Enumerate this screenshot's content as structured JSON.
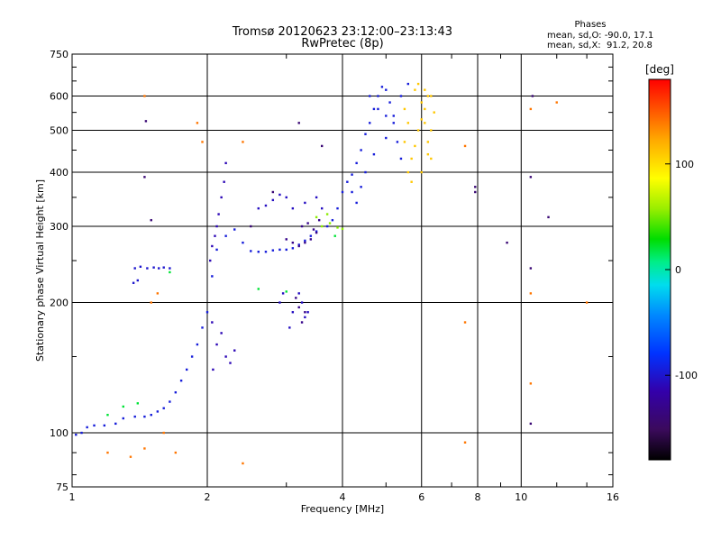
{
  "chart_data": {
    "type": "scatter",
    "title": "Tromsø 20120623 23:12:00–23:13:43",
    "subtitle": "RwPretec (8p)",
    "xlabel": "Frequency [MHz]",
    "ylabel": "Stationary phase Virtual Height [km]",
    "x_scale": "log",
    "y_scale": "log",
    "xlim": [
      1,
      16
    ],
    "ylim": [
      75,
      750
    ],
    "x_ticks": [
      1,
      2,
      4,
      6,
      8,
      10,
      16
    ],
    "x_tick_labels": [
      "1",
      "2",
      "4",
      "6",
      "8",
      "10",
      "16"
    ],
    "y_ticks": [
      75,
      100,
      200,
      300,
      400,
      500,
      600,
      750
    ],
    "y_tick_labels": [
      "75",
      "100",
      "200",
      "300",
      "400",
      "500",
      "600",
      "750"
    ],
    "grid": true,
    "phase_stats": {
      "heading": "Phases",
      "line_o": "mean, sd,O: -90.0, 17.1",
      "line_x": "mean, sd,X:  91.2, 20.8"
    },
    "colorbar": {
      "label": "[deg]",
      "range": [
        -180,
        180
      ],
      "ticks": [
        100,
        0,
        -100
      ],
      "tick_labels": [
        "100",
        "0",
        "-100"
      ]
    },
    "traces": [
      {
        "name": "",
        "phase": -95,
        "points": [
          [
            1.02,
            99
          ],
          [
            1.05,
            100
          ],
          [
            1.08,
            103
          ],
          [
            1.12,
            104
          ],
          [
            1.18,
            104
          ],
          [
            1.25,
            105
          ],
          [
            1.3,
            108
          ],
          [
            1.38,
            109
          ],
          [
            1.45,
            109
          ],
          [
            1.5,
            110
          ],
          [
            1.55,
            112
          ],
          [
            1.6,
            114
          ],
          [
            1.65,
            118
          ],
          [
            1.7,
            124
          ],
          [
            1.75,
            132
          ],
          [
            1.8,
            140
          ],
          [
            1.85,
            150
          ],
          [
            1.9,
            160
          ],
          [
            1.95,
            175
          ],
          [
            2.0,
            190
          ],
          [
            2.05,
            230
          ],
          [
            2.1,
            265
          ],
          [
            2.2,
            285
          ],
          [
            2.3,
            295
          ],
          [
            2.4,
            275
          ],
          [
            2.5,
            263
          ],
          [
            2.6,
            262
          ],
          [
            2.7,
            262
          ],
          [
            2.8,
            264
          ],
          [
            2.9,
            265
          ],
          [
            3.0,
            265
          ],
          [
            3.1,
            267
          ],
          [
            3.2,
            272
          ],
          [
            3.3,
            278
          ],
          [
            3.4,
            285
          ],
          [
            3.5,
            292
          ],
          [
            3.7,
            300
          ],
          [
            3.8,
            310
          ],
          [
            3.9,
            330
          ],
          [
            4.0,
            360
          ],
          [
            4.1,
            380
          ],
          [
            4.2,
            395
          ]
        ]
      },
      {
        "name": "",
        "phase": -100,
        "points": [
          [
            1.38,
            240
          ],
          [
            1.42,
            242
          ],
          [
            1.47,
            240
          ],
          [
            1.52,
            241
          ],
          [
            1.56,
            240
          ],
          [
            1.6,
            241
          ],
          [
            1.65,
            240
          ],
          [
            1.37,
            222
          ],
          [
            1.4,
            225
          ]
        ]
      },
      {
        "name": "",
        "phase": -110,
        "points": [
          [
            2.05,
            270
          ],
          [
            2.08,
            285
          ],
          [
            2.1,
            300
          ],
          [
            2.12,
            320
          ],
          [
            2.15,
            350
          ],
          [
            2.18,
            380
          ],
          [
            2.2,
            420
          ],
          [
            2.03,
            250
          ],
          [
            2.05,
            180
          ],
          [
            2.1,
            160
          ],
          [
            2.15,
            170
          ],
          [
            2.2,
            150
          ],
          [
            2.25,
            145
          ],
          [
            2.3,
            155
          ],
          [
            2.06,
            140
          ]
        ]
      },
      {
        "name": "",
        "phase": -105,
        "points": [
          [
            2.6,
            330
          ],
          [
            2.7,
            335
          ],
          [
            2.8,
            345
          ],
          [
            2.9,
            355
          ],
          [
            3.0,
            350
          ],
          [
            3.1,
            330
          ],
          [
            3.3,
            340
          ],
          [
            3.5,
            350
          ],
          [
            3.6,
            330
          ],
          [
            3.2,
            210
          ],
          [
            3.25,
            200
          ],
          [
            3.3,
            185
          ],
          [
            3.35,
            190
          ],
          [
            3.1,
            190
          ],
          [
            3.05,
            175
          ],
          [
            2.9,
            200
          ],
          [
            2.95,
            210
          ]
        ]
      },
      {
        "name": "",
        "phase": -130,
        "points": [
          [
            3.0,
            280
          ],
          [
            3.1,
            275
          ],
          [
            3.2,
            270
          ],
          [
            3.3,
            275
          ],
          [
            3.4,
            280
          ],
          [
            3.5,
            290
          ],
          [
            3.25,
            300
          ],
          [
            3.35,
            305
          ],
          [
            3.45,
            295
          ],
          [
            3.55,
            310
          ],
          [
            3.15,
            205
          ],
          [
            3.2,
            195
          ],
          [
            3.3,
            190
          ],
          [
            3.25,
            180
          ]
        ]
      },
      {
        "name": "",
        "phase": -95,
        "points": [
          [
            4.3,
            420
          ],
          [
            4.4,
            450
          ],
          [
            4.5,
            490
          ],
          [
            4.6,
            520
          ],
          [
            4.7,
            560
          ],
          [
            4.8,
            600
          ],
          [
            4.9,
            630
          ],
          [
            5.0,
            620
          ],
          [
            5.1,
            580
          ],
          [
            5.2,
            520
          ],
          [
            5.3,
            470
          ],
          [
            5.4,
            430
          ],
          [
            4.5,
            400
          ],
          [
            4.7,
            440
          ],
          [
            5.0,
            480
          ],
          [
            5.2,
            540
          ],
          [
            5.4,
            600
          ],
          [
            5.6,
            640
          ],
          [
            4.2,
            360
          ],
          [
            4.3,
            340
          ],
          [
            4.4,
            370
          ],
          [
            4.6,
            600
          ],
          [
            4.8,
            560
          ],
          [
            5.0,
            540
          ]
        ]
      },
      {
        "name": "",
        "phase": 110,
        "points": [
          [
            5.6,
            400
          ],
          [
            5.7,
            430
          ],
          [
            5.8,
            460
          ],
          [
            5.9,
            500
          ],
          [
            6.0,
            530
          ],
          [
            6.1,
            560
          ],
          [
            6.2,
            600
          ],
          [
            5.8,
            620
          ],
          [
            5.9,
            640
          ],
          [
            6.0,
            580
          ],
          [
            6.1,
            520
          ],
          [
            6.2,
            470
          ],
          [
            6.3,
            430
          ],
          [
            5.7,
            380
          ],
          [
            6.0,
            400
          ],
          [
            6.2,
            440
          ],
          [
            6.3,
            500
          ],
          [
            6.4,
            550
          ],
          [
            5.5,
            470
          ],
          [
            5.6,
            520
          ],
          [
            5.5,
            560
          ],
          [
            6.1,
            620
          ],
          [
            6.3,
            600
          ]
        ]
      },
      {
        "name": "",
        "phase": 55,
        "points": [
          [
            3.6,
            300
          ],
          [
            3.75,
            305
          ],
          [
            3.9,
            298
          ],
          [
            4.0,
            296
          ],
          [
            3.7,
            320
          ],
          [
            3.5,
            315
          ]
        ]
      },
      {
        "name": "",
        "phase": 20,
        "points": [
          [
            1.65,
            235
          ],
          [
            2.6,
            215
          ],
          [
            3.0,
            212
          ],
          [
            1.2,
            110
          ],
          [
            1.3,
            115
          ],
          [
            1.4,
            117
          ],
          [
            3.85,
            285
          ]
        ]
      },
      {
        "name": "",
        "phase": 140,
        "points": [
          [
            1.45,
            600
          ],
          [
            1.9,
            520
          ],
          [
            1.95,
            470
          ],
          [
            2.4,
            470
          ],
          [
            7.5,
            460
          ],
          [
            7.5,
            180
          ],
          [
            12.0,
            580
          ],
          [
            10.5,
            560
          ],
          [
            1.2,
            90
          ],
          [
            1.35,
            88
          ],
          [
            1.45,
            92
          ],
          [
            2.4,
            85
          ],
          [
            7.5,
            95
          ],
          [
            1.6,
            100
          ],
          [
            1.7,
            90
          ],
          [
            1.5,
            200
          ],
          [
            1.55,
            210
          ],
          [
            10.5,
            210
          ],
          [
            10.5,
            130
          ],
          [
            14.0,
            200
          ]
        ]
      },
      {
        "name": "",
        "phase": -140,
        "points": [
          [
            1.46,
            525
          ],
          [
            1.45,
            390
          ],
          [
            1.5,
            310
          ],
          [
            2.5,
            300
          ],
          [
            2.8,
            360
          ],
          [
            3.2,
            520
          ],
          [
            3.6,
            460
          ],
          [
            7.9,
            370
          ],
          [
            7.9,
            360
          ],
          [
            11.5,
            315
          ],
          [
            9.3,
            275
          ],
          [
            10.6,
            600
          ],
          [
            10.5,
            390
          ],
          [
            10.5,
            240
          ],
          [
            10.5,
            105
          ]
        ]
      }
    ]
  }
}
